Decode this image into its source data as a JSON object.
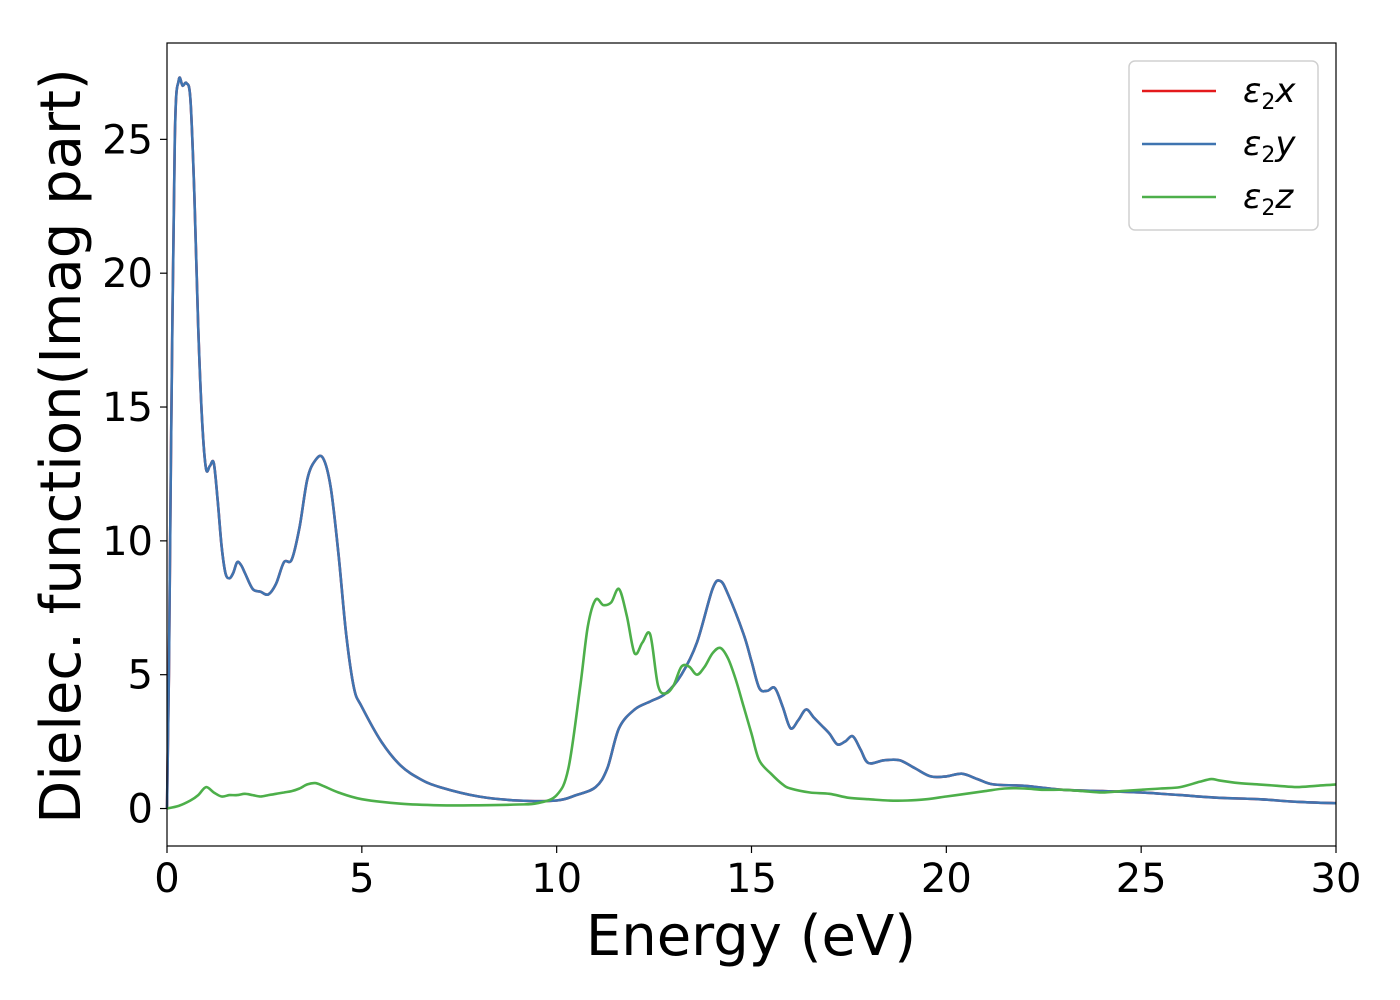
{
  "chart_data": {
    "type": "line",
    "xlabel": "Energy (eV)",
    "ylabel": "Dielec. function(Imag part)",
    "xlim": [
      0,
      30
    ],
    "ylim": [
      -1.4,
      28.6
    ],
    "xticks": [
      0,
      5,
      10,
      15,
      20,
      25,
      30
    ],
    "yticks": [
      0,
      5,
      10,
      15,
      20,
      25
    ],
    "grid": false,
    "legend_position": "top-right",
    "series": [
      {
        "name": "x",
        "color": "#e41a1c",
        "x": [
          0,
          0.05,
          0.1,
          0.2,
          0.3,
          0.4,
          0.5,
          0.6,
          0.7,
          0.8,
          0.9,
          1.0,
          1.1,
          1.2,
          1.3,
          1.4,
          1.5,
          1.6,
          1.7,
          1.8,
          1.9,
          2.0,
          2.2,
          2.4,
          2.6,
          2.8,
          3.0,
          3.2,
          3.4,
          3.6,
          3.8,
          4.0,
          4.2,
          4.4,
          4.6,
          4.8,
          5.0,
          5.5,
          6.0,
          6.5,
          7.0,
          8.0,
          9.0,
          10.0,
          10.5,
          11.0,
          11.3,
          11.6,
          12.0,
          12.4,
          12.8,
          13.2,
          13.6,
          14.0,
          14.2,
          14.4,
          14.8,
          15.0,
          15.2,
          15.4,
          15.6,
          15.8,
          16.0,
          16.2,
          16.4,
          16.6,
          16.8,
          17.0,
          17.2,
          17.4,
          17.6,
          17.8,
          18.0,
          18.4,
          18.8,
          19.2,
          19.6,
          20.0,
          20.4,
          20.8,
          21.2,
          22.0,
          23.0,
          24.0,
          25.0,
          26.0,
          27.0,
          28.0,
          29.0,
          30.0
        ],
        "y": [
          0.0,
          5.0,
          13.0,
          25.0,
          27.2,
          27.0,
          27.1,
          26.5,
          23.0,
          18.0,
          14.5,
          12.7,
          12.8,
          12.9,
          11.5,
          9.8,
          8.8,
          8.6,
          8.8,
          9.2,
          9.1,
          8.8,
          8.2,
          8.1,
          8.0,
          8.4,
          9.2,
          9.3,
          10.5,
          12.3,
          13.0,
          13.1,
          12.0,
          9.5,
          6.5,
          4.5,
          3.8,
          2.5,
          1.6,
          1.1,
          0.8,
          0.45,
          0.3,
          0.3,
          0.5,
          0.8,
          1.5,
          3.0,
          3.7,
          4.0,
          4.3,
          5.0,
          6.2,
          8.2,
          8.5,
          8.0,
          6.5,
          5.5,
          4.5,
          4.4,
          4.5,
          3.8,
          3.0,
          3.3,
          3.7,
          3.4,
          3.1,
          2.8,
          2.4,
          2.5,
          2.7,
          2.2,
          1.7,
          1.8,
          1.8,
          1.5,
          1.2,
          1.2,
          1.3,
          1.1,
          0.9,
          0.85,
          0.7,
          0.65,
          0.6,
          0.5,
          0.4,
          0.35,
          0.25,
          0.2
        ]
      },
      {
        "name": "y",
        "color": "#3f74b0",
        "x": [
          0,
          0.05,
          0.1,
          0.2,
          0.3,
          0.4,
          0.5,
          0.6,
          0.7,
          0.8,
          0.9,
          1.0,
          1.1,
          1.2,
          1.3,
          1.4,
          1.5,
          1.6,
          1.7,
          1.8,
          1.9,
          2.0,
          2.2,
          2.4,
          2.6,
          2.8,
          3.0,
          3.2,
          3.4,
          3.6,
          3.8,
          4.0,
          4.2,
          4.4,
          4.6,
          4.8,
          5.0,
          5.5,
          6.0,
          6.5,
          7.0,
          8.0,
          9.0,
          10.0,
          10.5,
          11.0,
          11.3,
          11.6,
          12.0,
          12.4,
          12.8,
          13.2,
          13.6,
          14.0,
          14.2,
          14.4,
          14.8,
          15.0,
          15.2,
          15.4,
          15.6,
          15.8,
          16.0,
          16.2,
          16.4,
          16.6,
          16.8,
          17.0,
          17.2,
          17.4,
          17.6,
          17.8,
          18.0,
          18.4,
          18.8,
          19.2,
          19.6,
          20.0,
          20.4,
          20.8,
          21.2,
          22.0,
          23.0,
          24.0,
          25.0,
          26.0,
          27.0,
          28.0,
          29.0,
          30.0
        ],
        "y": [
          0.0,
          5.0,
          13.0,
          25.0,
          27.2,
          27.0,
          27.1,
          26.5,
          23.0,
          18.0,
          14.5,
          12.7,
          12.8,
          12.9,
          11.5,
          9.8,
          8.8,
          8.6,
          8.8,
          9.2,
          9.1,
          8.8,
          8.2,
          8.1,
          8.0,
          8.4,
          9.2,
          9.3,
          10.5,
          12.3,
          13.0,
          13.1,
          12.0,
          9.5,
          6.5,
          4.5,
          3.8,
          2.5,
          1.6,
          1.1,
          0.8,
          0.45,
          0.3,
          0.3,
          0.5,
          0.8,
          1.5,
          3.0,
          3.7,
          4.0,
          4.3,
          5.0,
          6.2,
          8.2,
          8.5,
          8.0,
          6.5,
          5.5,
          4.5,
          4.4,
          4.5,
          3.8,
          3.0,
          3.3,
          3.7,
          3.4,
          3.1,
          2.8,
          2.4,
          2.5,
          2.7,
          2.2,
          1.7,
          1.8,
          1.8,
          1.5,
          1.2,
          1.2,
          1.3,
          1.1,
          0.9,
          0.85,
          0.7,
          0.65,
          0.6,
          0.5,
          0.4,
          0.35,
          0.25,
          0.2
        ]
      },
      {
        "name": "z",
        "color": "#4daf4a",
        "x": [
          0,
          0.3,
          0.6,
          0.8,
          1.0,
          1.2,
          1.4,
          1.6,
          1.8,
          2.0,
          2.2,
          2.4,
          2.6,
          2.8,
          3.0,
          3.2,
          3.4,
          3.6,
          3.8,
          4.0,
          4.4,
          5.0,
          6.0,
          7.0,
          8.0,
          9.0,
          9.5,
          10.0,
          10.3,
          10.6,
          10.8,
          11.0,
          11.2,
          11.4,
          11.6,
          11.8,
          12.0,
          12.2,
          12.4,
          12.6,
          12.8,
          13.0,
          13.2,
          13.4,
          13.6,
          13.8,
          14.0,
          14.2,
          14.4,
          14.6,
          14.8,
          15.0,
          15.2,
          15.5,
          15.8,
          16.0,
          16.5,
          17.0,
          17.5,
          18.0,
          18.5,
          19.0,
          19.5,
          20.0,
          20.5,
          21.0,
          21.5,
          22.0,
          22.5,
          23.0,
          23.5,
          24.0,
          24.5,
          25.0,
          25.5,
          26.0,
          26.5,
          26.8,
          27.0,
          27.5,
          28.0,
          28.5,
          29.0,
          29.5,
          30.0
        ],
        "y": [
          0.0,
          0.1,
          0.3,
          0.5,
          0.8,
          0.6,
          0.45,
          0.5,
          0.5,
          0.55,
          0.5,
          0.45,
          0.5,
          0.55,
          0.6,
          0.65,
          0.75,
          0.9,
          0.95,
          0.85,
          0.6,
          0.35,
          0.18,
          0.12,
          0.12,
          0.15,
          0.2,
          0.5,
          1.5,
          4.5,
          6.8,
          7.8,
          7.6,
          7.7,
          8.2,
          7.2,
          5.8,
          6.2,
          6.5,
          4.6,
          4.3,
          4.6,
          5.3,
          5.3,
          5.0,
          5.3,
          5.8,
          6.0,
          5.6,
          4.8,
          3.8,
          2.8,
          1.8,
          1.3,
          0.9,
          0.75,
          0.6,
          0.55,
          0.4,
          0.35,
          0.3,
          0.3,
          0.35,
          0.45,
          0.55,
          0.65,
          0.75,
          0.75,
          0.7,
          0.7,
          0.65,
          0.6,
          0.65,
          0.7,
          0.75,
          0.8,
          1.0,
          1.1,
          1.05,
          0.95,
          0.9,
          0.85,
          0.8,
          0.85,
          0.9
        ]
      }
    ]
  },
  "legend": {
    "entries": [
      {
        "symbol": "ε",
        "sub": "2",
        "var": "x",
        "color": "#e41a1c"
      },
      {
        "symbol": "ε",
        "sub": "2",
        "var": "y",
        "color": "#3f74b0"
      },
      {
        "symbol": "ε",
        "sub": "2",
        "var": "z",
        "color": "#4daf4a"
      }
    ]
  }
}
